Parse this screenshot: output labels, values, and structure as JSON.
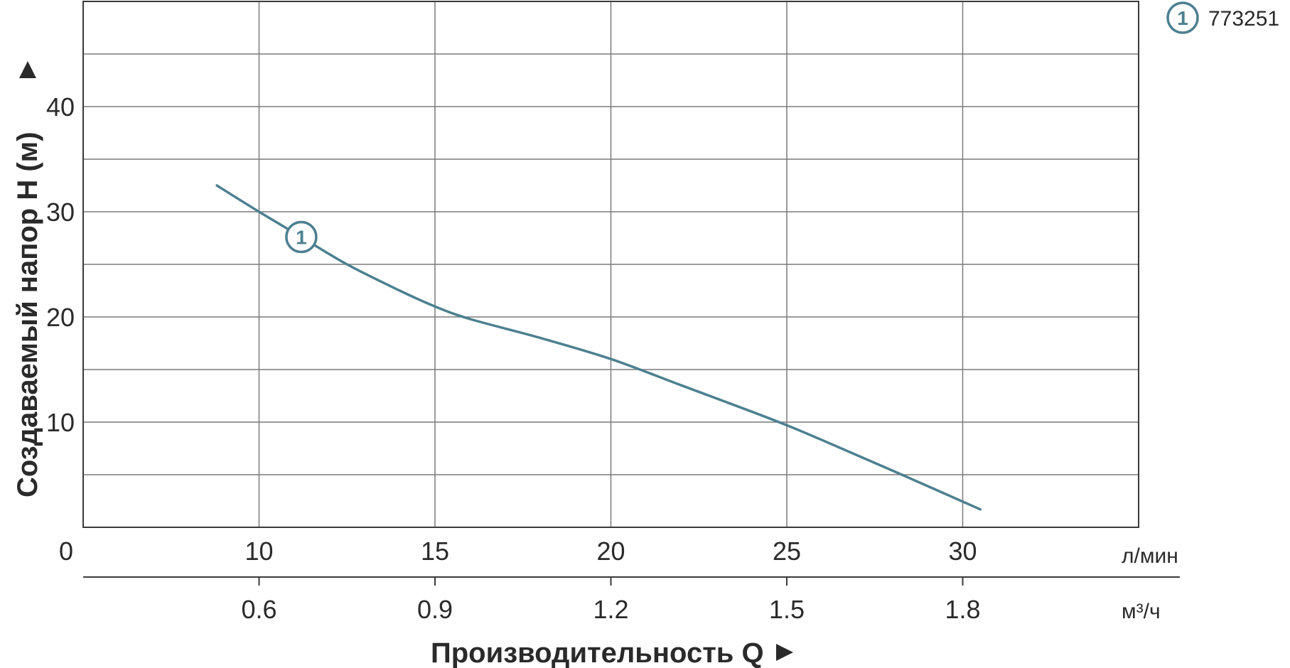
{
  "chart_data": {
    "type": "line",
    "xlabel": "Производительность Q",
    "ylabel": "Создаваемый напор H (м)",
    "x_unit": "л/мин",
    "x2_unit": "м³/ч",
    "xlim": [
      5,
      35
    ],
    "ylim": [
      0,
      50
    ],
    "grid": true,
    "x_origin_label": "0",
    "x_ticks": [
      10,
      15,
      20,
      25,
      30
    ],
    "x_tick_labels": [
      "10",
      "15",
      "20",
      "25",
      "30"
    ],
    "x2_tick_labels": [
      "0.6",
      "0.9",
      "1.2",
      "1.5",
      "1.8"
    ],
    "y_ticks": [
      10,
      20,
      30,
      40
    ],
    "y_tick_labels": [
      "10",
      "20",
      "30",
      "40"
    ],
    "legend_position": "top-right",
    "series": [
      {
        "name": "773251",
        "marker": "1",
        "color": "#4d8090",
        "x": [
          8.8,
          10,
          11.2,
          12.5,
          14,
          15,
          16,
          18,
          20,
          22,
          24,
          25,
          26,
          28,
          30.5
        ],
        "y": [
          32.5,
          30.0,
          27.6,
          25.0,
          22.5,
          21.0,
          19.8,
          18.0,
          16.0,
          13.5,
          11.0,
          9.7,
          8.3,
          5.4,
          1.7
        ]
      }
    ]
  },
  "colors": {
    "grid": "#7a7a7a",
    "frame": "#3a3a3a",
    "text": "#2a2a2a",
    "curve": "#4d8090"
  }
}
